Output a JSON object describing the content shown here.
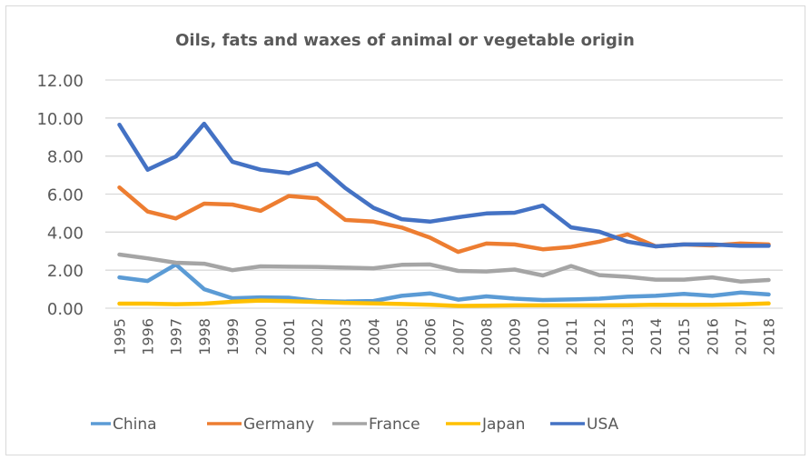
{
  "chart_data": {
    "type": "line",
    "title": "Oils, fats and waxes of animal or vegetable origin",
    "xlabel": "",
    "ylabel": "",
    "ylim": [
      0,
      12
    ],
    "yticks": [
      "0.00",
      "2.00",
      "4.00",
      "6.00",
      "8.00",
      "10.00",
      "12.00"
    ],
    "ytick_values": [
      0,
      2,
      4,
      6,
      8,
      10,
      12
    ],
    "grid": "horizontal",
    "legend_position": "bottom",
    "categories": [
      "1995",
      "1996",
      "1997",
      "1998",
      "1999",
      "2000",
      "2001",
      "2002",
      "2003",
      "2004",
      "2005",
      "2006",
      "2007",
      "2008",
      "2009",
      "2010",
      "2011",
      "2012",
      "2013",
      "2014",
      "2015",
      "2016",
      "2017",
      "2018"
    ],
    "series": [
      {
        "name": "China",
        "color": "#5B9BD5",
        "values": [
          1.62,
          1.43,
          2.3,
          1.0,
          0.52,
          0.57,
          0.55,
          0.38,
          0.35,
          0.38,
          0.65,
          0.78,
          0.45,
          0.62,
          0.5,
          0.43,
          0.46,
          0.5,
          0.6,
          0.65,
          0.75,
          0.65,
          0.82,
          0.72
        ]
      },
      {
        "name": "Germany",
        "color": "#ED7D31",
        "values": [
          6.35,
          5.08,
          4.72,
          5.5,
          5.45,
          5.12,
          5.9,
          5.78,
          4.64,
          4.55,
          4.24,
          3.71,
          2.96,
          3.4,
          3.35,
          3.1,
          3.22,
          3.5,
          3.88,
          3.25,
          3.35,
          3.3,
          3.4,
          3.35
        ]
      },
      {
        "name": "France",
        "color": "#A5A5A5",
        "values": [
          2.82,
          2.62,
          2.39,
          2.34,
          2.0,
          2.2,
          2.18,
          2.17,
          2.13,
          2.1,
          2.28,
          2.3,
          1.96,
          1.93,
          2.03,
          1.72,
          2.22,
          1.74,
          1.65,
          1.5,
          1.5,
          1.62,
          1.4,
          1.48
        ]
      },
      {
        "name": "Japan",
        "color": "#FFC000",
        "values": [
          0.24,
          0.24,
          0.21,
          0.24,
          0.34,
          0.4,
          0.37,
          0.33,
          0.28,
          0.25,
          0.22,
          0.18,
          0.12,
          0.13,
          0.15,
          0.15,
          0.15,
          0.15,
          0.16,
          0.18,
          0.17,
          0.18,
          0.2,
          0.25
        ]
      },
      {
        "name": "USA",
        "color": "#4472C4",
        "values": [
          9.65,
          7.28,
          7.98,
          9.7,
          7.7,
          7.28,
          7.1,
          7.6,
          6.32,
          5.28,
          4.68,
          4.55,
          4.78,
          4.98,
          5.02,
          5.4,
          4.25,
          4.02,
          3.5,
          3.25,
          3.35,
          3.35,
          3.28,
          3.28
        ]
      }
    ]
  }
}
